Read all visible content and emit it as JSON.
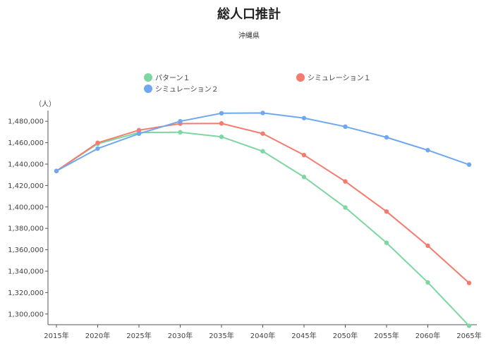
{
  "chart_data": {
    "type": "line",
    "title": "総人口推計",
    "subtitle": "沖縄県",
    "ylabel": "（人）",
    "xlabel": "",
    "categories": [
      "2015年",
      "2020年",
      "2025年",
      "2030年",
      "2035年",
      "2040年",
      "2045年",
      "2050年",
      "2055年",
      "2060年",
      "2065年"
    ],
    "ylim": [
      1290000,
      1490000
    ],
    "yticks": [
      1300000,
      1320000,
      1340000,
      1360000,
      1380000,
      1400000,
      1420000,
      1440000,
      1460000,
      1480000
    ],
    "ytick_labels": [
      "1,300,000",
      "1,320,000",
      "1,340,000",
      "1,360,000",
      "1,380,000",
      "1,400,000",
      "1,420,000",
      "1,440,000",
      "1,460,000",
      "1,480,000"
    ],
    "grid": false,
    "legend": "top",
    "series": [
      {
        "name": "パターン１",
        "color": "#7ed6a0",
        "values": [
          1433600,
          1459000,
          1469500,
          1469800,
          1465500,
          1452000,
          1428000,
          1399500,
          1366500,
          1329500,
          1289000
        ]
      },
      {
        "name": "シミュレーション１",
        "color": "#f57b6e",
        "values": [
          1433600,
          1459900,
          1471700,
          1477800,
          1478000,
          1468500,
          1448500,
          1423800,
          1395700,
          1363800,
          1329000
        ]
      },
      {
        "name": "シミュレーション２",
        "color": "#6fa8f0",
        "values": [
          1433600,
          1454500,
          1468400,
          1480000,
          1487500,
          1487800,
          1483000,
          1475000,
          1465000,
          1453000,
          1439500
        ]
      }
    ]
  }
}
